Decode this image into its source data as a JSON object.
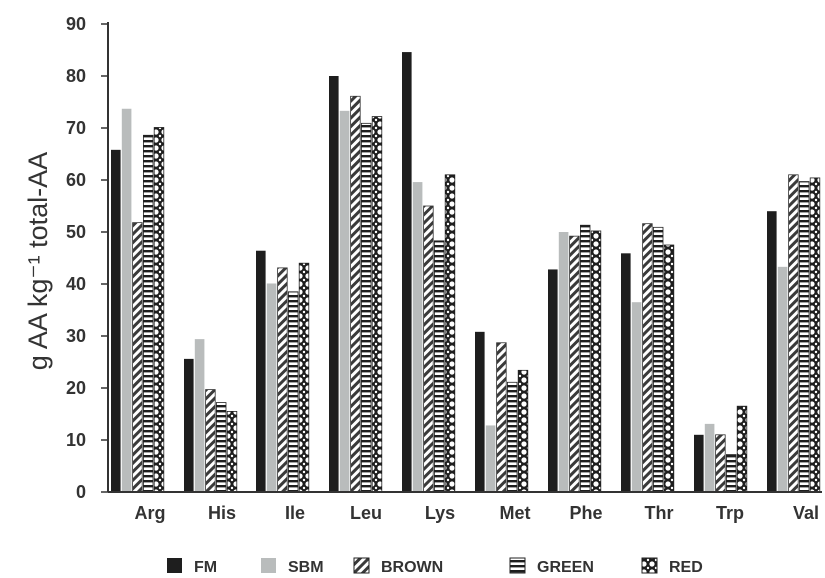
{
  "chart_data": {
    "type": "bar",
    "title": "",
    "xlabel": "",
    "ylabel": "g AA kg⁻¹ total-AA",
    "ylim": [
      0,
      90
    ],
    "yticks": [
      0,
      10,
      20,
      30,
      40,
      50,
      60,
      70,
      80,
      90
    ],
    "grid": false,
    "legend_position": "bottom",
    "categories": [
      "Arg",
      "His",
      "Ile",
      "Leu",
      "Lys",
      "Met",
      "Phe",
      "Thr",
      "Trp",
      "Val"
    ],
    "series": [
      {
        "name": "FM",
        "pattern": "solid-black",
        "values": [
          65.8,
          25.6,
          46.4,
          80.0,
          84.6,
          30.8,
          42.8,
          45.9,
          11.0,
          54.0
        ]
      },
      {
        "name": "SBM",
        "pattern": "solid-gray",
        "values": [
          73.7,
          29.4,
          40.1,
          73.3,
          59.6,
          12.8,
          50.0,
          36.5,
          13.1,
          43.3
        ]
      },
      {
        "name": "BROWN",
        "pattern": "diagonal-hatch",
        "values": [
          51.8,
          19.7,
          43.1,
          76.1,
          55.0,
          28.7,
          49.2,
          51.6,
          11.0,
          61.0
        ]
      },
      {
        "name": "GREEN",
        "pattern": "horizontal-lines",
        "values": [
          68.6,
          17.2,
          38.5,
          70.9,
          48.3,
          21.1,
          51.3,
          50.9,
          7.2,
          59.7
        ]
      },
      {
        "name": "RED",
        "pattern": "crosshatch-dots",
        "values": [
          70.1,
          15.5,
          44.0,
          72.2,
          61.0,
          23.4,
          50.2,
          47.5,
          16.5,
          60.4
        ]
      }
    ],
    "colors": {
      "FM": "#1e1e1e",
      "SBM": "#b9bcbc",
      "BROWN": "#555555",
      "GREEN": "#222222",
      "RED": "#222222",
      "axis": "#333333"
    }
  }
}
